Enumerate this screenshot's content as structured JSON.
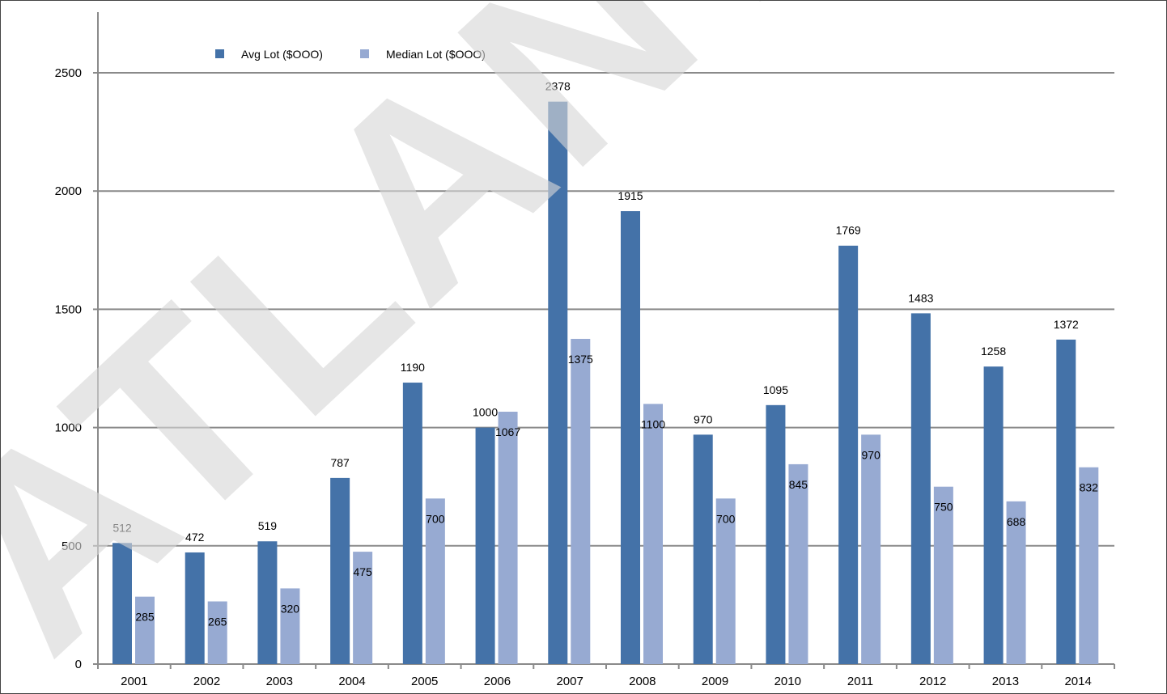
{
  "chart_data": {
    "type": "bar",
    "categories": [
      "2001",
      "2002",
      "2003",
      "2004",
      "2005",
      "2006",
      "2007",
      "2008",
      "2009",
      "2010",
      "2011",
      "2012",
      "2013",
      "2014"
    ],
    "series": [
      {
        "name": "Avg Lot ($OOO)",
        "color": "#4472A8",
        "values": [
          512,
          472,
          519,
          787,
          1190,
          1000,
          2378,
          1915,
          970,
          1095,
          1769,
          1483,
          1258,
          1372
        ]
      },
      {
        "name": "Median Lot ($OOO)",
        "color": "#97AAD2",
        "values": [
          285,
          265,
          320,
          475,
          700,
          1067,
          1375,
          1100,
          700,
          845,
          970,
          750,
          688,
          832
        ]
      }
    ],
    "yticks": [
      0,
      500,
      1000,
      1500,
      2000,
      2500
    ],
    "ylim": [
      0,
      2750
    ],
    "grid": true,
    "legend_position": "top",
    "watermark": "ATLANTIC"
  }
}
